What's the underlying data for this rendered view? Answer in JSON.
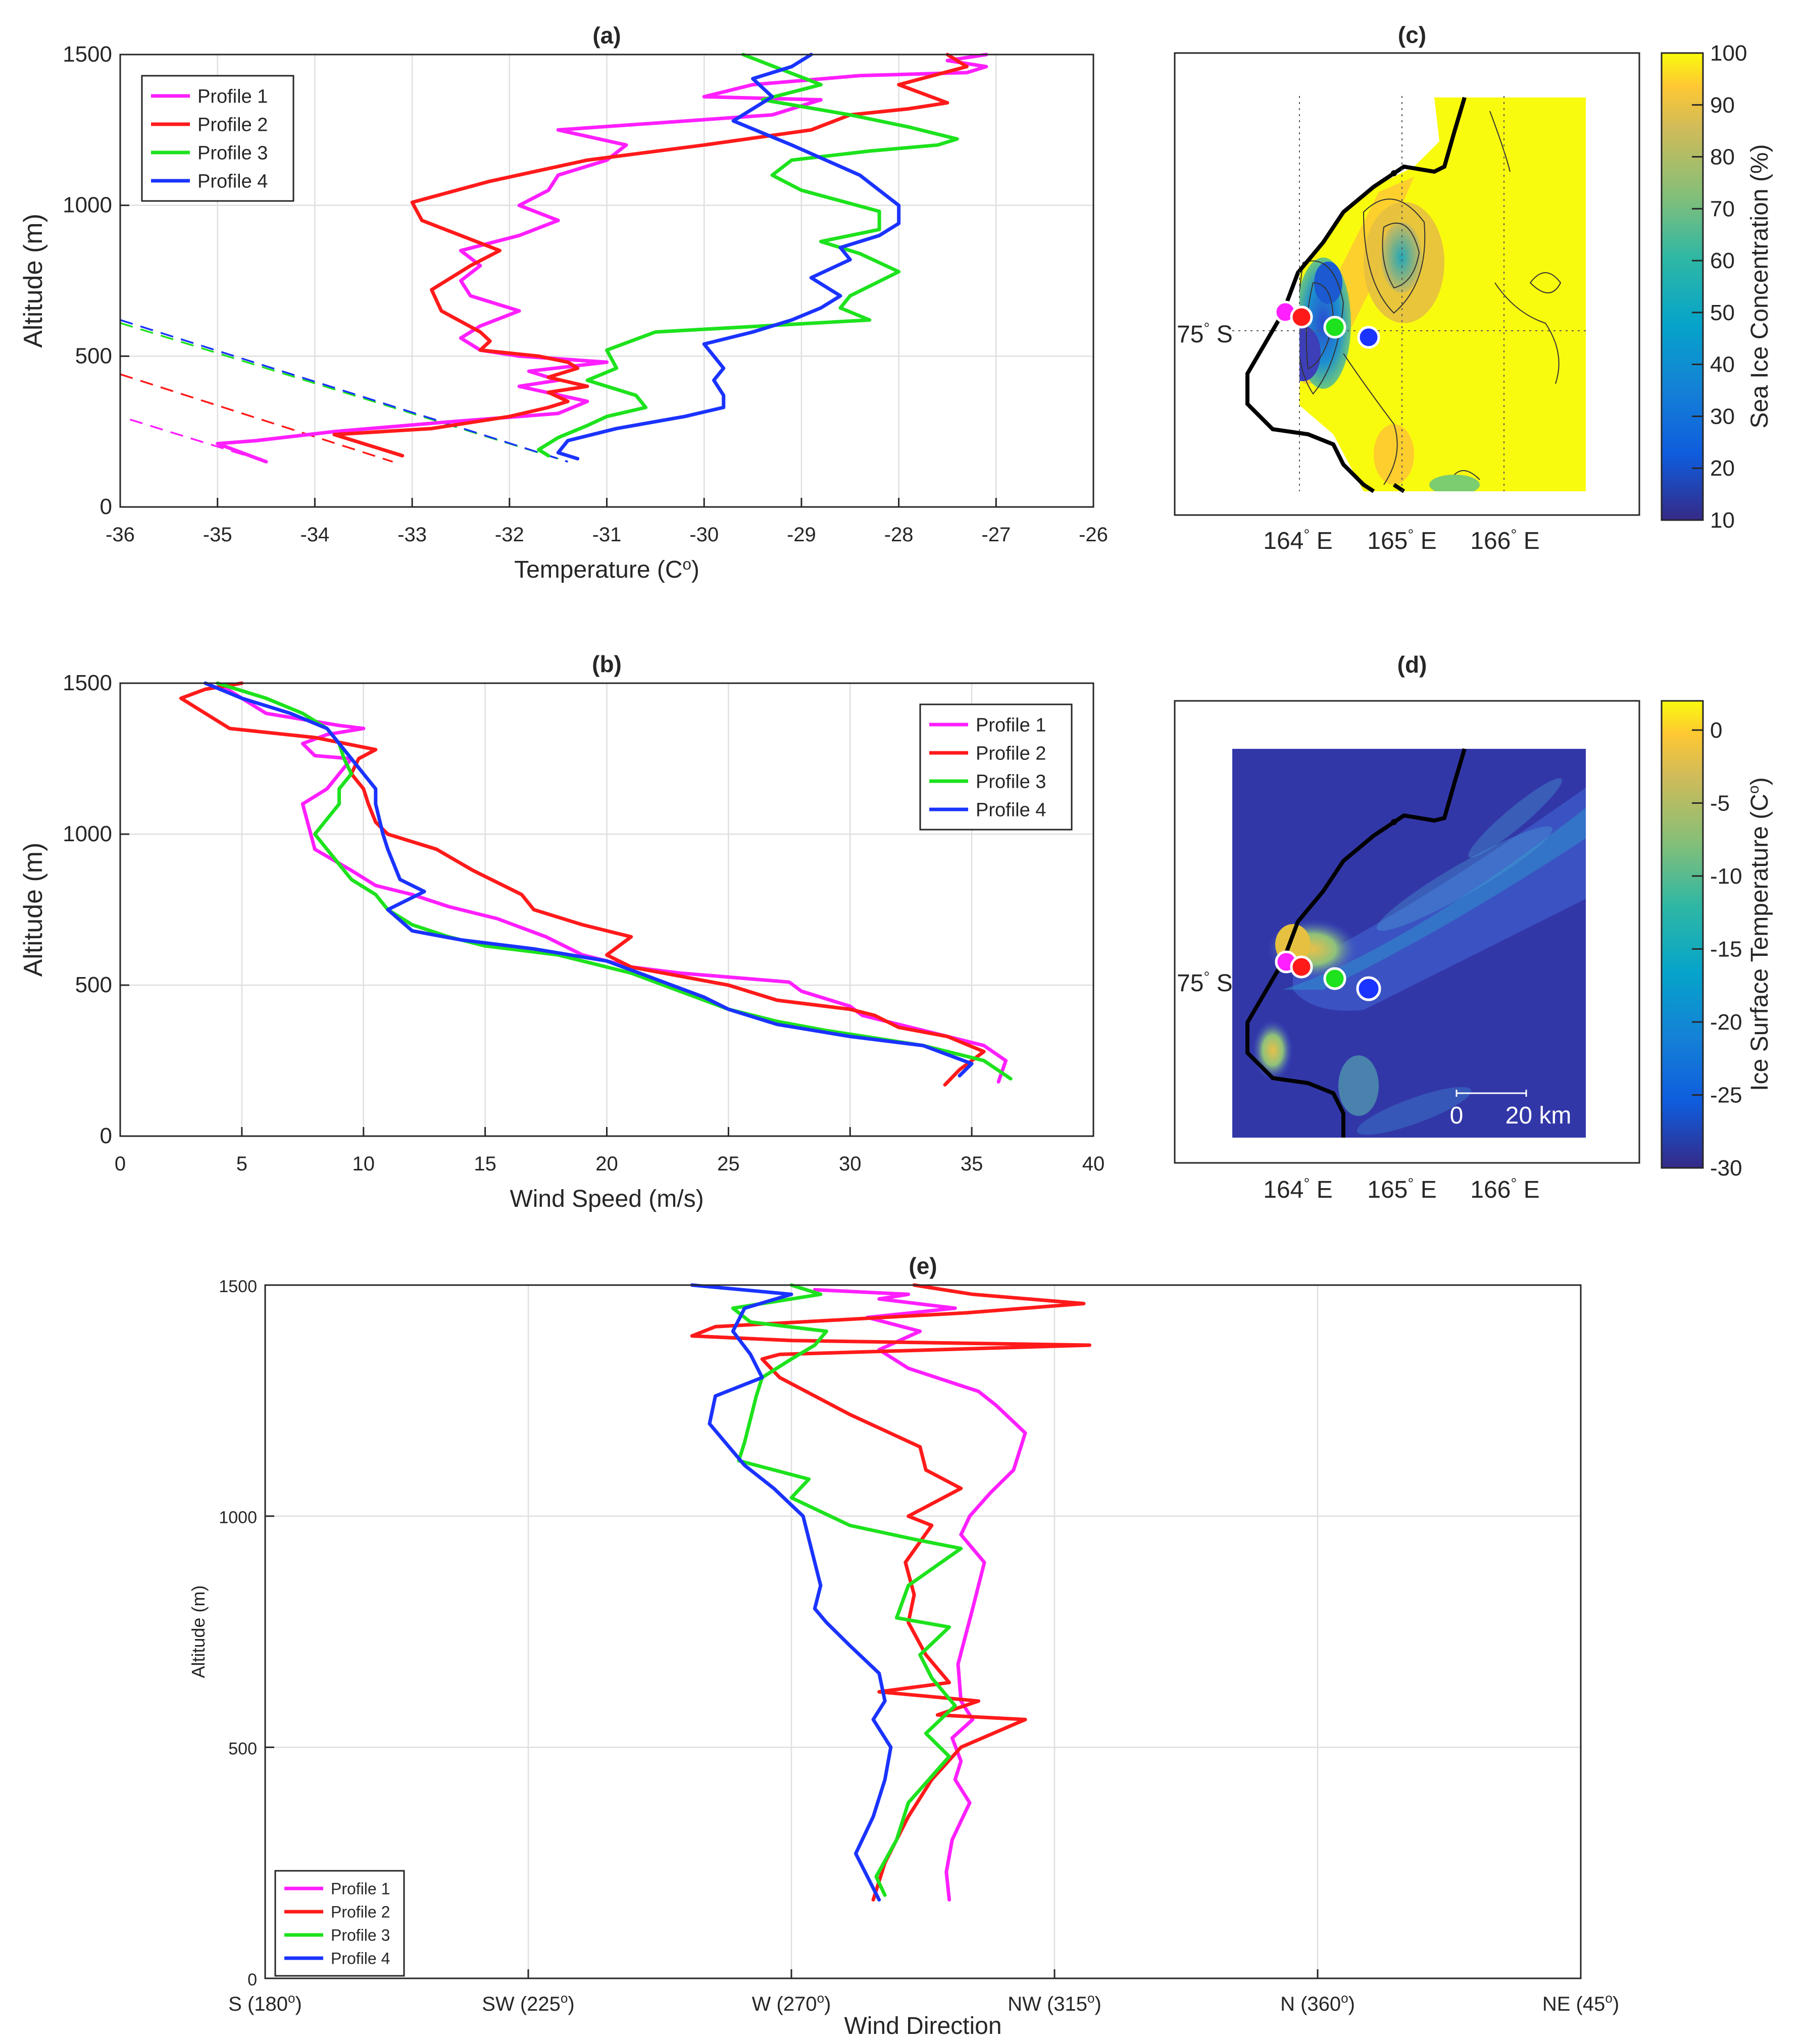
{
  "colors": {
    "profile_1": "#ff1fff",
    "profile_2": "#ff1a1a",
    "profile_3": "#1de21d",
    "profile_4": "#1a33ff"
  },
  "chart_data": [
    {
      "id": "a",
      "type": "line",
      "title": "(a)",
      "xlabel": "Temperature (C",
      "xlabel_sup": "o",
      "xlabel_tail": ")",
      "ylabel": "Altitude (m)",
      "xlim": [
        -36,
        -26
      ],
      "ylim": [
        0,
        1500
      ],
      "xticks": [
        -36,
        -35,
        -34,
        -33,
        -32,
        -31,
        -30,
        -29,
        -28,
        -27,
        -26
      ],
      "yticks": [
        0,
        500,
        1000,
        1500
      ],
      "grid": true,
      "legend": "top-left",
      "series": [
        {
          "name": "Profile 1",
          "color": "#ff1fff",
          "x": [
            -34.5,
            -35.0,
            -34.6,
            -33.8,
            -32.7,
            -31.5,
            -31.2,
            -31.9,
            -31.5,
            -31.8,
            -31.0,
            -31.9,
            -32.3,
            -32.5,
            -32.3,
            -31.9,
            -32.4,
            -32.5,
            -32.3,
            -32.5,
            -31.9,
            -31.5,
            -31.9,
            -31.6,
            -31.5,
            -31.0,
            -30.8,
            -31.5,
            -29.3,
            -28.8,
            -30.0,
            -29.5,
            -28.4,
            -27.3,
            -27.1,
            -27.5,
            -27.1
          ],
          "y": [
            150,
            210,
            220,
            250,
            280,
            310,
            350,
            400,
            420,
            450,
            480,
            500,
            520,
            560,
            600,
            650,
            700,
            750,
            800,
            850,
            900,
            950,
            1000,
            1050,
            1100,
            1150,
            1200,
            1250,
            1300,
            1350,
            1360,
            1400,
            1430,
            1440,
            1460,
            1480,
            1500
          ]
        },
        {
          "name": "Profile 2",
          "color": "#ff1a1a",
          "x": [
            -33.1,
            -33.8,
            -32.8,
            -32.0,
            -31.6,
            -31.4,
            -31.6,
            -31.2,
            -31.6,
            -31.3,
            -31.4,
            -31.7,
            -32.3,
            -32.2,
            -32.3,
            -32.7,
            -32.8,
            -32.4,
            -32.1,
            -32.5,
            -32.9,
            -33.0,
            -32.2,
            -31.2,
            -30.0,
            -28.9,
            -28.5,
            -27.9,
            -27.5,
            -28.0,
            -27.3,
            -27.5
          ],
          "y": [
            170,
            240,
            260,
            300,
            330,
            350,
            380,
            400,
            430,
            460,
            480,
            500,
            520,
            550,
            580,
            650,
            720,
            800,
            850,
            900,
            950,
            1010,
            1080,
            1150,
            1200,
            1250,
            1300,
            1320,
            1340,
            1400,
            1460,
            1500
          ]
        },
        {
          "name": "Profile 3",
          "color": "#1de21d",
          "x": [
            -31.6,
            -31.7,
            -31.5,
            -31.2,
            -31.0,
            -30.6,
            -30.7,
            -31.2,
            -30.9,
            -31.0,
            -30.5,
            -28.3,
            -28.6,
            -28.5,
            -28.0,
            -28.4,
            -28.8,
            -28.2,
            -28.2,
            -29.0,
            -29.3,
            -29.1,
            -28.3,
            -27.6,
            -27.4,
            -27.9,
            -28.5,
            -29.4,
            -28.8,
            -29.2,
            -29.6
          ],
          "y": [
            170,
            190,
            230,
            270,
            300,
            330,
            370,
            420,
            460,
            520,
            580,
            620,
            660,
            700,
            780,
            840,
            880,
            920,
            980,
            1050,
            1100,
            1150,
            1180,
            1200,
            1220,
            1260,
            1300,
            1350,
            1400,
            1450,
            1500
          ]
        },
        {
          "name": "Profile 4",
          "color": "#1a33ff",
          "x": [
            -31.3,
            -31.5,
            -31.4,
            -30.9,
            -30.2,
            -29.8,
            -29.8,
            -29.9,
            -29.8,
            -29.9,
            -30.0,
            -29.5,
            -29.1,
            -28.8,
            -28.6,
            -28.9,
            -28.5,
            -28.6,
            -28.2,
            -28.0,
            -28.0,
            -28.4,
            -29.1,
            -29.7,
            -29.3,
            -29.5,
            -29.1,
            -28.9
          ],
          "y": [
            160,
            180,
            220,
            260,
            300,
            330,
            370,
            420,
            460,
            500,
            540,
            580,
            620,
            660,
            700,
            760,
            820,
            860,
            900,
            940,
            1000,
            1100,
            1200,
            1280,
            1360,
            1420,
            1460,
            1500
          ]
        }
      ],
      "dashed_series": [
        {
          "color": "#ff1fff",
          "x": [
            -35.9,
            -34.5
          ],
          "y": [
            290,
            150
          ]
        },
        {
          "color": "#ff1a1a",
          "x": [
            -36.0,
            -33.2
          ],
          "y": [
            440,
            150
          ]
        },
        {
          "color": "#1de21d",
          "x": [
            -36.0,
            -31.4
          ],
          "y": [
            610,
            150
          ]
        },
        {
          "color": "#1a33ff",
          "x": [
            -36.0,
            -31.4
          ],
          "y": [
            620,
            150
          ]
        }
      ]
    },
    {
      "id": "b",
      "type": "line",
      "title": "(b)",
      "xlabel": "Wind Speed (m/s)",
      "ylabel": "Altitude (m)",
      "xlim": [
        0,
        40
      ],
      "ylim": [
        0,
        1500
      ],
      "xticks": [
        0,
        5,
        10,
        15,
        20,
        25,
        30,
        35,
        40
      ],
      "yticks": [
        0,
        500,
        1000,
        1500
      ],
      "grid": true,
      "legend": "top-right",
      "series": [
        {
          "name": "Profile 1",
          "color": "#ff1fff",
          "x": [
            36.1,
            36.4,
            35.5,
            33.0,
            30.5,
            30.0,
            28.0,
            27.5,
            26.0,
            23.0,
            21.0,
            19.0,
            17.5,
            15.5,
            13.5,
            12.0,
            10.5,
            9.5,
            8.0,
            7.5,
            8.5,
            9.0,
            9.5,
            8.0,
            7.5,
            8.5,
            10.0,
            9.0,
            6.0,
            5.0,
            4.0
          ],
          "y": [
            180,
            250,
            300,
            350,
            400,
            430,
            480,
            510,
            520,
            540,
            560,
            600,
            660,
            720,
            760,
            800,
            830,
            880,
            950,
            1100,
            1150,
            1200,
            1250,
            1260,
            1300,
            1330,
            1350,
            1360,
            1400,
            1450,
            1500
          ]
        },
        {
          "name": "Profile 2",
          "color": "#ff1a1a",
          "x": [
            33.9,
            34.5,
            35.5,
            34.0,
            32.0,
            31.0,
            30.0,
            27.0,
            25.0,
            23.0,
            21.0,
            20.0,
            21.0,
            19.0,
            17.0,
            16.5,
            15.0,
            14.5,
            13.0,
            11.0,
            10.5,
            10.2,
            10.0,
            9.5,
            9.8,
            10.5,
            8.0,
            4.5,
            3.5,
            2.5,
            3.5,
            5.0
          ],
          "y": [
            170,
            220,
            280,
            330,
            360,
            400,
            420,
            450,
            500,
            530,
            560,
            600,
            660,
            700,
            750,
            800,
            860,
            880,
            950,
            1000,
            1040,
            1100,
            1150,
            1200,
            1250,
            1280,
            1320,
            1350,
            1400,
            1450,
            1480,
            1500
          ]
        },
        {
          "name": "Profile 3",
          "color": "#1de21d",
          "x": [
            36.6,
            35.5,
            33.0,
            29.0,
            27.0,
            25.0,
            23.0,
            21.0,
            18.0,
            15.0,
            13.5,
            12.0,
            11.0,
            10.5,
            9.5,
            9.0,
            8.5,
            8.0,
            8.5,
            9.0,
            9.0,
            9.5,
            9.2,
            9.0,
            8.5,
            7.5,
            6.0,
            4.0
          ],
          "y": [
            190,
            250,
            300,
            350,
            380,
            420,
            480,
            540,
            600,
            630,
            660,
            700,
            750,
            800,
            850,
            900,
            950,
            1000,
            1050,
            1100,
            1150,
            1200,
            1250,
            1300,
            1350,
            1400,
            1450,
            1500
          ]
        },
        {
          "name": "Profile 4",
          "color": "#1a33ff",
          "x": [
            34.5,
            35.0,
            33.0,
            30.0,
            27.0,
            25.0,
            24.0,
            22.0,
            20.0,
            17.0,
            14.0,
            12.0,
            11.0,
            12.5,
            11.5,
            11.0,
            10.8,
            10.5,
            10.5,
            10.0,
            9.5,
            9.0,
            8.5,
            7.0,
            5.0,
            3.5
          ],
          "y": [
            200,
            240,
            300,
            330,
            370,
            420,
            460,
            520,
            580,
            620,
            650,
            680,
            750,
            810,
            850,
            950,
            1000,
            1100,
            1150,
            1200,
            1250,
            1300,
            1350,
            1400,
            1450,
            1500
          ]
        }
      ]
    },
    {
      "id": "e",
      "type": "line",
      "title": "(e)",
      "xlabel": "Wind Direction",
      "ylabel": "Altitude (m)",
      "xlim": [
        180,
        405
      ],
      "ylim": [
        0,
        1500
      ],
      "xticks": [
        180,
        225,
        270,
        315,
        360,
        405
      ],
      "xticklabels": [
        [
          "S (180",
          "o",
          ")"
        ],
        [
          "SW (225",
          "o",
          ")"
        ],
        [
          "W (270",
          "o",
          ")"
        ],
        [
          "NW (315",
          "o",
          ")"
        ],
        [
          "N (360",
          "o",
          ")"
        ],
        [
          "NE (45",
          "o",
          ")"
        ]
      ],
      "yticks": [
        0,
        500,
        1000,
        1500
      ],
      "grid": true,
      "legend": "bottom-left",
      "series": [
        {
          "name": "Profile 1",
          "color": "#ff1fff",
          "x": [
            297.0,
            296.5,
            297.5,
            300.5,
            298.0,
            299.0,
            297.5,
            301.0,
            299.0,
            298.5,
            301.0,
            303.0,
            299.0,
            300.5,
            304.0,
            308.0,
            310.0,
            305.0,
            302.0,
            290.0,
            285.0,
            292.0,
            283.0,
            298.0,
            285.0,
            290.0,
            274.0
          ],
          "y": [
            170,
            230,
            300,
            380,
            430,
            470,
            520,
            560,
            600,
            680,
            800,
            900,
            960,
            1000,
            1050,
            1100,
            1180,
            1240,
            1270,
            1320,
            1360,
            1400,
            1430,
            1450,
            1470,
            1480,
            1490
          ]
        },
        {
          "name": "Profile 2",
          "color": "#ff1a1a",
          "x": [
            284.0,
            286.0,
            290.0,
            294.0,
            299.0,
            310.0,
            295.0,
            302.0,
            285.0,
            297.0,
            293.0,
            290.0,
            291.0,
            289.5,
            294.0,
            290.0,
            299.0,
            293.0,
            292.0,
            280.0,
            268.0,
            265.0,
            268.0,
            321.0,
            270.0,
            253.0,
            257.0,
            300.0,
            320.0,
            301.0,
            291.0
          ],
          "y": [
            170,
            250,
            350,
            430,
            500,
            560,
            570,
            600,
            620,
            640,
            700,
            770,
            830,
            900,
            980,
            1000,
            1060,
            1100,
            1150,
            1220,
            1300,
            1340,
            1350,
            1370,
            1380,
            1390,
            1410,
            1440,
            1460,
            1480,
            1500
          ]
        },
        {
          "name": "Profile 3",
          "color": "#1de21d",
          "x": [
            286.0,
            284.5,
            288.0,
            290.0,
            297.0,
            293.0,
            298.0,
            294.0,
            292.0,
            297.0,
            288.0,
            290.0,
            299.0,
            291.0,
            280.0,
            270.0,
            273.0,
            261.0,
            262.0,
            264.0,
            265.0,
            270.0,
            274.0,
            276.0,
            263.0,
            260.0,
            275.0,
            270.0
          ],
          "y": [
            180,
            220,
            300,
            380,
            480,
            530,
            590,
            650,
            700,
            760,
            780,
            850,
            930,
            950,
            980,
            1040,
            1080,
            1120,
            1160,
            1260,
            1300,
            1340,
            1370,
            1400,
            1420,
            1450,
            1480,
            1500
          ]
        },
        {
          "name": "Profile 4",
          "color": "#1a33ff",
          "x": [
            285.0,
            281.0,
            284.0,
            286.0,
            287.0,
            284.0,
            286.0,
            285.0,
            280.0,
            276.0,
            274.0,
            275.0,
            273.0,
            272.0,
            267.0,
            262.0,
            256.0,
            257.0,
            265.0,
            263.0,
            260.0,
            262.0,
            270.0,
            253.0
          ],
          "y": [
            170,
            270,
            350,
            430,
            500,
            560,
            600,
            660,
            720,
            770,
            800,
            850,
            950,
            1000,
            1060,
            1110,
            1200,
            1260,
            1300,
            1350,
            1400,
            1450,
            1480,
            1500
          ]
        }
      ]
    }
  ],
  "maps": {
    "c": {
      "title": "(c)",
      "lat_label": "75",
      "lat_sup": "°",
      "lat_tail": " S",
      "lon_labels": [
        [
          "164",
          "°",
          " E"
        ],
        [
          "165",
          "°",
          " E"
        ],
        [
          "166",
          "°",
          " E"
        ]
      ],
      "colorbar": {
        "label": "Sea Ice Concentration (%)",
        "ticks": [
          "10",
          "20",
          "30",
          "40",
          "50",
          "60",
          "70",
          "80",
          "90",
          "100"
        ]
      }
    },
    "d": {
      "title": "(d)",
      "lat_label": "75",
      "lat_sup": "°",
      "lat_tail": " S",
      "lon_labels": [
        [
          "164",
          "°",
          " E"
        ],
        [
          "165",
          "°",
          " E"
        ],
        [
          "166",
          "°",
          " E"
        ]
      ],
      "scalebar": {
        "start": "0",
        "end": "20 km"
      },
      "colorbar": {
        "label": "Ice Surface Temperature (C",
        "label_sup": "o",
        "label_tail": ")",
        "ticks": [
          "0",
          "-5",
          "-10",
          "-15",
          "-20",
          "-25",
          "-30"
        ]
      }
    }
  }
}
